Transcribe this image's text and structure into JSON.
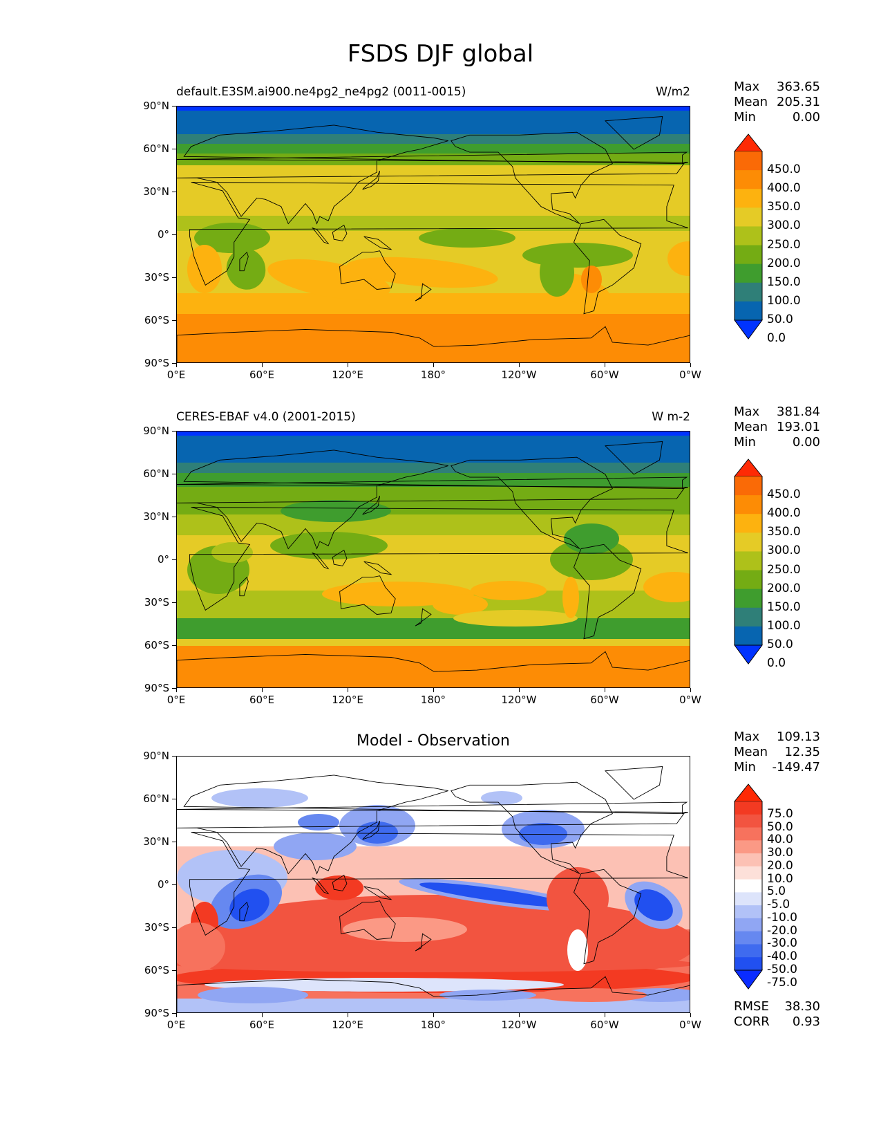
{
  "figure_title": "FSDS DJF global",
  "lon_labels": [
    "0°E",
    "60°E",
    "120°E",
    "180°",
    "120°W",
    "60°W",
    "0°W"
  ],
  "lat_labels": [
    "90°N",
    "60°N",
    "30°N",
    "0°",
    "30°S",
    "60°S",
    "90°S"
  ],
  "panels": [
    {
      "title": "default.E3SM.ai900.ne4pg2_ne4pg2 (0011-0015)",
      "units": "W/m2",
      "stats": [
        {
          "label": "Max",
          "value": "363.65"
        },
        {
          "label": "Mean",
          "value": "205.31"
        },
        {
          "label": "Min",
          "value": "0.00"
        }
      ],
      "colorbar_labels": [
        "450.0",
        "400.0",
        "350.0",
        "300.0",
        "250.0",
        "200.0",
        "150.0",
        "100.0",
        "50.0",
        "0.0"
      ]
    },
    {
      "title": "CERES-EBAF v4.0 (2001-2015)",
      "units": "W m-2",
      "stats": [
        {
          "label": "Max",
          "value": "381.84"
        },
        {
          "label": "Mean",
          "value": "193.01"
        },
        {
          "label": "Min",
          "value": "0.00"
        }
      ],
      "colorbar_labels": [
        "450.0",
        "400.0",
        "350.0",
        "300.0",
        "250.0",
        "200.0",
        "150.0",
        "100.0",
        "50.0",
        "0.0"
      ]
    },
    {
      "title": "Model - Observation",
      "units": "",
      "stats": [
        {
          "label": "Max",
          "value": "109.13"
        },
        {
          "label": "Mean",
          "value": "12.35"
        },
        {
          "label": "Min",
          "value": "-149.47"
        }
      ],
      "colorbar_labels": [
        "75.0",
        "50.0",
        "40.0",
        "30.0",
        "20.0",
        "10.0",
        "5.0",
        "-5.0",
        "-10.0",
        "-20.0",
        "-30.0",
        "-40.0",
        "-50.0",
        "-75.0"
      ],
      "metrics": [
        {
          "label": "RMSE",
          "value": "38.30"
        },
        {
          "label": "CORR",
          "value": "0.93"
        }
      ]
    }
  ],
  "colors": {
    "abs_scale": [
      "#0033ff",
      "#0765b0",
      "#2f7f78",
      "#3f9d2e",
      "#74ac14",
      "#aec11a",
      "#e5cb26",
      "#fdb20f",
      "#fd8c05",
      "#fa6a06",
      "#fe2a05"
    ],
    "diff_scale": [
      "#0a2cff",
      "#2150f0",
      "#3f6bef",
      "#6688f0",
      "#90a6f3",
      "#b2c2f7",
      "#dde4fb",
      "#ffffff",
      "#fde0d9",
      "#fcc1b4",
      "#fb9985",
      "#f7725d",
      "#f25440",
      "#f33a22",
      "#fe2a05"
    ]
  }
}
